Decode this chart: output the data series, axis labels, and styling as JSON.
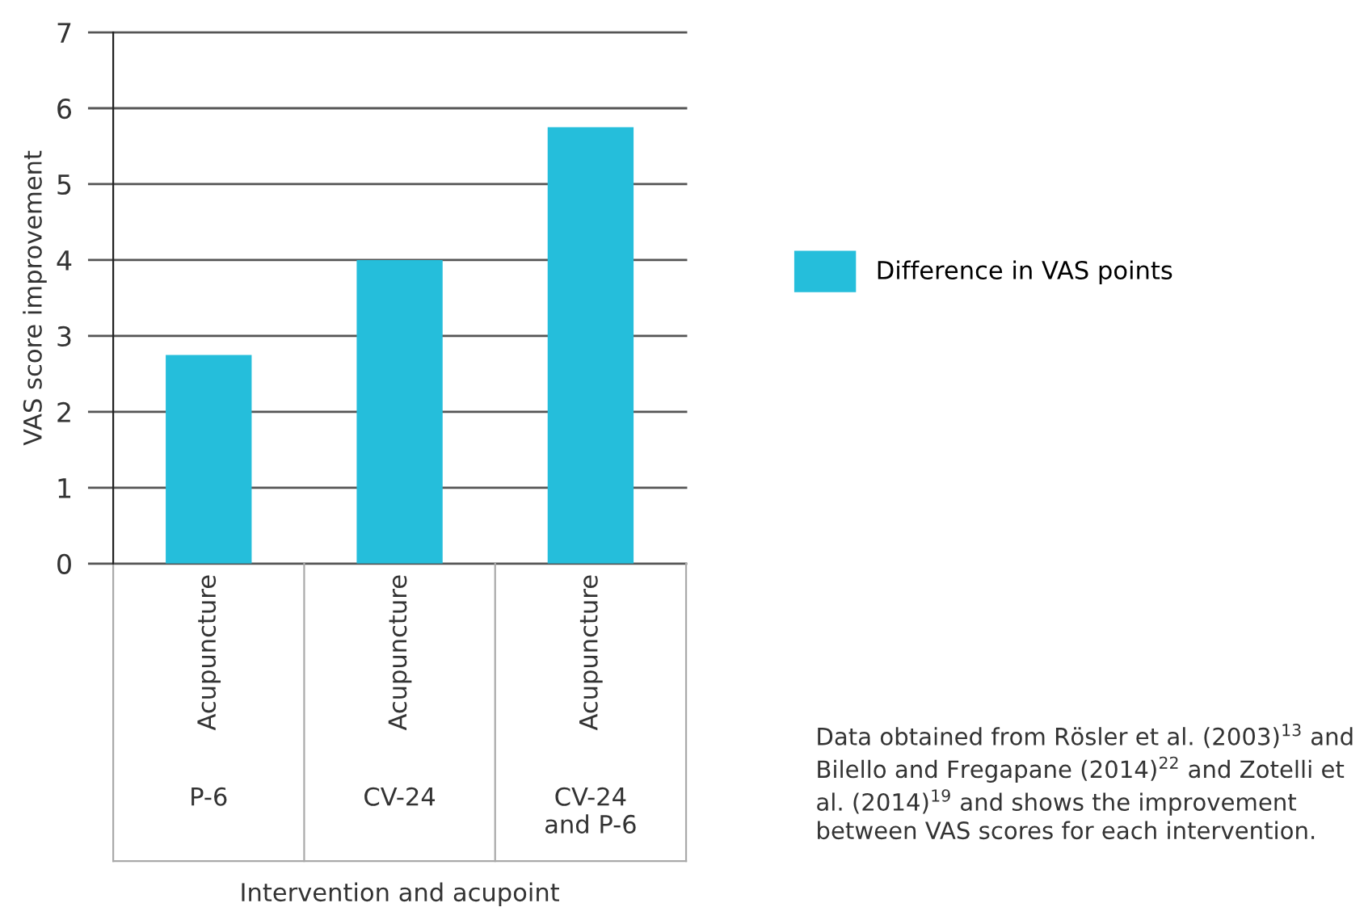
{
  "chart_data": {
    "type": "bar",
    "ylabel": "VAS score improvement",
    "categories": [
      "Acupuncture\nP-6",
      "Acupuncture\nCV-24",
      "Acupuncture\nCV-24\nand P-6"
    ],
    "series": [
      {
        "name": "Difference in VAS points",
        "color": "#25bedb",
        "values": [
          2.75,
          4,
          5.75
        ]
      }
    ],
    "ylim": [
      0,
      7
    ],
    "yticks": [
      0,
      1,
      2,
      3,
      4,
      5,
      6,
      7
    ],
    "grid": "y",
    "legend": "right",
    "annotations": [
      "Intervention and acupoint",
      "Data obtained from Rösler et al. (2003)$^{13}$ and Bilello and Fregapane (2014)$^{22}$ and Zotelli et al. (2014)$^{19}$ and shows the improvement between VAS scores for each intervention."
    ]
  }
}
